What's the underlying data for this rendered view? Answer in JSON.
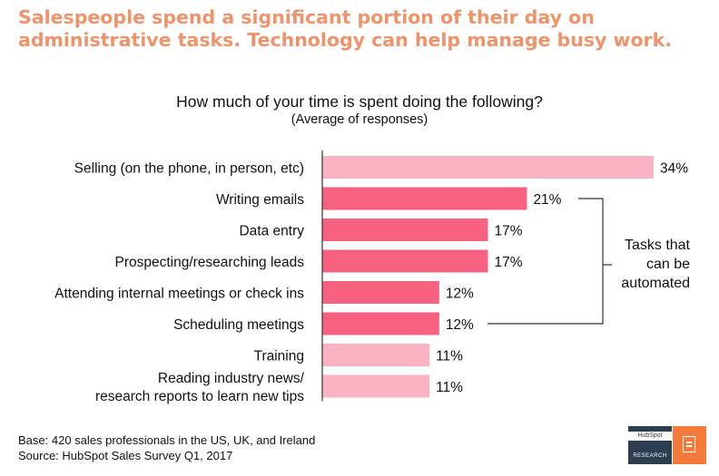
{
  "headline": {
    "line1": "Salespeople spend a significant portion of their day on",
    "line2": "administrative tasks. Technology can help manage busy work."
  },
  "annotation": {
    "line1": "Tasks that",
    "line2": "can be",
    "line3": "automated"
  },
  "footer": {
    "base": "Base: 420 sales professionals in the US, UK, and Ireland",
    "source": "Source: HubSpot Sales Survey Q1, 2017"
  },
  "logo": {
    "brand": "HubSpot",
    "label": "RESEARCH",
    "icon": "book-icon"
  },
  "colors": {
    "headline": "#f0926a",
    "bar_automatable": "#f7607e",
    "bar_other": "#fbb2c2",
    "axis": "#333333"
  },
  "chart_data": {
    "type": "bar",
    "orientation": "horizontal",
    "title": "How much of your time is spent doing the following?",
    "subtitle": "(Average of responses)",
    "value_suffix": "%",
    "xlim": [
      0,
      34
    ],
    "categories": [
      [
        "Selling (on the phone, in person, etc)"
      ],
      [
        "Writing emails"
      ],
      [
        "Data entry"
      ],
      [
        "Prospecting/researching leads"
      ],
      [
        "Attending internal meetings or check ins"
      ],
      [
        "Scheduling meetings"
      ],
      [
        "Training"
      ],
      [
        "Reading industry news/",
        "research reports to learn new tips"
      ]
    ],
    "values": [
      34,
      21,
      17,
      17,
      12,
      12,
      11,
      11
    ],
    "automatable": [
      false,
      true,
      true,
      true,
      true,
      true,
      false,
      false
    ]
  }
}
